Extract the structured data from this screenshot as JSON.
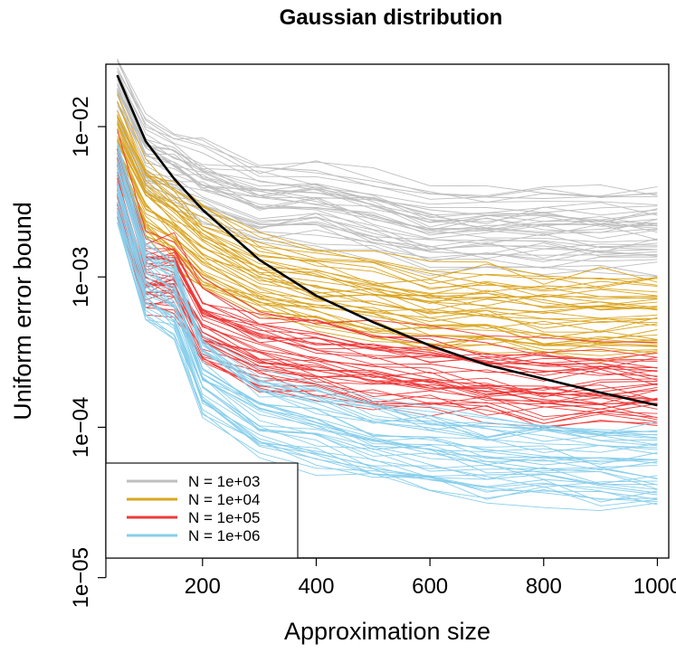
{
  "chart_data": {
    "type": "line",
    "title": "Gaussian distribution",
    "xlabel": "Approximation size",
    "ylabel": "Uniform error bound",
    "x_scale": "linear",
    "y_scale": "log",
    "xlim": [
      30,
      1020
    ],
    "ylim": [
      1.35e-05,
      0.026
    ],
    "x_ticks": [
      200,
      400,
      600,
      800,
      1000
    ],
    "x_tick_labels": [
      "200",
      "400",
      "600",
      "800",
      "1000"
    ],
    "y_ticks": [
      1e-05,
      0.0001,
      0.001,
      0.01
    ],
    "y_tick_labels": [
      "1e−05",
      "1e−04",
      "1e−03",
      "1e−02"
    ],
    "grid": false,
    "legend_position": "bottom-left",
    "series": [
      {
        "name": "N = 1e+03",
        "color": "#bebebe",
        "runs": 40,
        "x": [
          50,
          100,
          150,
          200,
          300,
          400,
          500,
          600,
          700,
          800,
          900,
          1000
        ],
        "median_values": [
          0.015,
          0.006,
          0.005,
          0.004,
          0.003,
          0.003,
          0.0025,
          0.002,
          0.002,
          0.002,
          0.002,
          0.002
        ]
      },
      {
        "name": "N = 1e+04",
        "color": "#daa520",
        "runs": 40,
        "x": [
          50,
          100,
          150,
          200,
          300,
          400,
          500,
          600,
          700,
          800,
          900,
          1000
        ],
        "median_values": [
          0.008,
          0.003,
          0.0022,
          0.0015,
          0.001,
          0.0008,
          0.0007,
          0.0006,
          0.0006,
          0.00055,
          0.00055,
          0.00055
        ]
      },
      {
        "name": "N = 1e+05",
        "color": "#ee3b3b",
        "runs": 40,
        "x": [
          50,
          100,
          150,
          200,
          300,
          400,
          500,
          600,
          700,
          800,
          900,
          1000
        ],
        "median_values": [
          0.005,
          0.0011,
          0.0011,
          0.0005,
          0.00035,
          0.0003,
          0.00026,
          0.00024,
          0.00022,
          0.0002,
          0.0002,
          0.0002
        ]
      },
      {
        "name": "N = 1e+06",
        "color": "#87ceeb",
        "runs": 40,
        "x": [
          50,
          100,
          150,
          200,
          300,
          400,
          500,
          600,
          700,
          800,
          900,
          1000
        ],
        "median_values": [
          0.004,
          0.0009,
          0.0007,
          0.00022,
          0.00012,
          0.0001,
          8e-05,
          7e-05,
          6e-05,
          6e-05,
          5.5e-05,
          5.5e-05
        ]
      }
    ],
    "reference_curve": {
      "color": "#000000",
      "x": [
        50,
        100,
        150,
        200,
        300,
        400,
        500,
        600,
        700,
        800,
        900,
        1000
      ],
      "values": [
        0.022,
        0.008,
        0.0045,
        0.0028,
        0.0013,
        0.00075,
        0.0005,
        0.00035,
        0.00026,
        0.00021,
        0.00017,
        0.00014
      ]
    }
  }
}
